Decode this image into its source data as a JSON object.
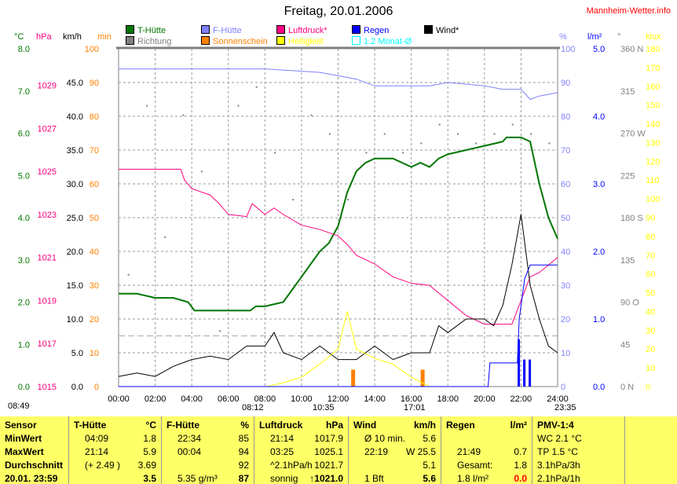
{
  "title": "Freitag, 20.01.2006",
  "site": "Mannheim-Wetter.info",
  "legend": [
    {
      "label": "T-Hütte",
      "color": "#007700"
    },
    {
      "label": "Richtung",
      "color": "#808080"
    },
    {
      "label": "F-Hütte",
      "color": "#8080ff"
    },
    {
      "label": "Sonnenschein",
      "color": "#ff8000"
    },
    {
      "label": "Luftdruck*",
      "color": "#ff0080"
    },
    {
      "label": "Helligkeit",
      "color": "#ffff00"
    },
    {
      "label": "Regen",
      "color": "#0000ff"
    },
    {
      "label": "1.2 Monat-Ø",
      "color": "#00ffff"
    },
    {
      "label": "Wind*",
      "color": "#000000"
    }
  ],
  "axis_units": {
    "c": "°C",
    "hpa": "hPa",
    "kmh": "km/h",
    "min": "min",
    "pct": "%",
    "lm2": "l/m²",
    "deg": "°",
    "klux": "klux"
  },
  "sun_events": {
    "sunrise_bright": "08:49",
    "sunrise": "08:12",
    "moon_set": "10:35",
    "sunset": "17:01",
    "moon_rise": "23:35"
  },
  "chart_data": {
    "type": "line",
    "title": "Freitag, 20.01.2006",
    "xlabel": "",
    "x_range": [
      0,
      24
    ],
    "x_ticks": [
      "00:00",
      "02:00",
      "04:00",
      "06:00",
      "08:00",
      "10:00",
      "12:00",
      "14:00",
      "16:00",
      "18:00",
      "20:00",
      "22:00",
      "24:00"
    ],
    "axes": {
      "c": {
        "range": [
          0,
          8
        ],
        "ticks": [
          "0.0",
          "1.0",
          "2.0",
          "3.0",
          "4.0",
          "5.0",
          "6.0",
          "7.0",
          "8.0"
        ]
      },
      "hpa": {
        "range": [
          1015,
          1030.7
        ],
        "ticks": [
          "1015",
          "1017",
          "1019",
          "1021",
          "1023",
          "1025",
          "1027",
          "1029"
        ]
      },
      "kmh": {
        "range": [
          0,
          50
        ],
        "ticks": [
          "0.0",
          "5.0",
          "10.0",
          "15.0",
          "20.0",
          "25.0",
          "30.0",
          "35.0",
          "40.0",
          "45.0"
        ]
      },
      "min": {
        "range": [
          0,
          100
        ],
        "ticks": [
          "0",
          "10",
          "20",
          "30",
          "40",
          "50",
          "60",
          "70",
          "80",
          "90",
          "100"
        ]
      },
      "pct": {
        "range": [
          0,
          100
        ],
        "ticks": [
          "0",
          "10",
          "20",
          "30",
          "40",
          "50",
          "60",
          "70",
          "80",
          "90",
          "100"
        ]
      },
      "lm2": {
        "range": [
          0,
          5
        ],
        "ticks": [
          "0.0",
          "1.0",
          "2.0",
          "3.0",
          "4.0",
          "5.0"
        ]
      },
      "deg": {
        "range": [
          0,
          360
        ],
        "ticks": [
          "0 N",
          "45",
          "90 O",
          "135",
          "180 S",
          "225",
          "270 W",
          "315",
          "360 N"
        ]
      },
      "klux": {
        "range": [
          0,
          180
        ],
        "ticks": [
          "0",
          "10",
          "20",
          "30",
          "40",
          "50",
          "60",
          "70",
          "80",
          "90",
          "100",
          "110",
          "120",
          "130",
          "140",
          "150",
          "160",
          "170",
          "180"
        ]
      }
    },
    "series": [
      {
        "name": "T-Hütte",
        "axis": "c",
        "color": "#007700",
        "x": [
          0,
          1,
          2,
          3,
          3.8,
          4.15,
          6,
          7.2,
          7.5,
          8,
          9,
          9.5,
          10,
          10.5,
          11,
          11.5,
          12,
          12.5,
          13,
          13.5,
          14,
          15,
          15.5,
          16,
          16.5,
          17,
          17.5,
          18,
          19,
          20,
          21,
          21.2,
          22,
          22.5,
          23,
          23.5,
          24
        ],
        "y": [
          2.2,
          2.2,
          2.1,
          2.1,
          2.0,
          1.8,
          1.8,
          1.8,
          1.9,
          1.9,
          2.0,
          2.3,
          2.6,
          2.9,
          3.2,
          3.4,
          3.8,
          4.6,
          5.1,
          5.3,
          5.4,
          5.4,
          5.3,
          5.2,
          5.3,
          5.2,
          5.4,
          5.5,
          5.6,
          5.7,
          5.8,
          5.9,
          5.9,
          5.8,
          4.8,
          4.0,
          3.5
        ]
      },
      {
        "name": "F-Hütte",
        "axis": "pct",
        "color": "#8080ff",
        "x": [
          0,
          6,
          8,
          11,
          12,
          13,
          14,
          17,
          18,
          20,
          21,
          22,
          22.5,
          23,
          24
        ],
        "y": [
          94,
          94,
          94,
          93,
          92,
          91,
          89,
          89,
          90,
          89,
          88,
          88,
          85,
          86,
          87
        ]
      },
      {
        "name": "Luftdruck*",
        "axis": "hpa",
        "color": "#ff0080",
        "x": [
          0,
          3.4,
          3.6,
          4,
          5,
          5.5,
          6,
          7,
          7.3,
          8,
          8.5,
          9,
          10,
          11,
          12,
          12.5,
          13,
          14,
          15,
          16,
          17,
          18,
          19,
          20,
          21.5,
          22,
          22.5,
          23,
          24
        ],
        "y": [
          1025.1,
          1025.1,
          1024.6,
          1024.2,
          1023.9,
          1023.5,
          1023.0,
          1022.9,
          1023.5,
          1023.0,
          1023.3,
          1023.0,
          1022.5,
          1022.3,
          1022.0,
          1021.6,
          1021.1,
          1020.7,
          1020.1,
          1019.8,
          1019.7,
          1019.0,
          1018.3,
          1017.9,
          1017.9,
          1019.0,
          1020.1,
          1020.3,
          1021.0
        ]
      },
      {
        "name": "Wind*",
        "axis": "kmh",
        "color": "#000000",
        "x": [
          0,
          1,
          2,
          3,
          4,
          5,
          6,
          7,
          8,
          8.5,
          9,
          10,
          11,
          12,
          13,
          14,
          15,
          16,
          17,
          17.5,
          18,
          19,
          20,
          20.5,
          21,
          21.5,
          22,
          22.5,
          23,
          23.5,
          24
        ],
        "y": [
          1.5,
          2,
          1.5,
          3,
          4,
          4.5,
          4,
          6,
          6,
          8,
          5,
          4,
          6,
          4,
          4,
          6,
          4,
          5,
          5,
          9,
          8,
          10,
          10,
          9,
          12,
          18,
          25.5,
          15,
          10,
          6,
          5
        ]
      },
      {
        "name": "Helligkeit",
        "axis": "klux",
        "color": "#ffff00",
        "x": [
          8.1,
          9,
          10,
          11,
          12,
          12.5,
          13,
          14,
          15,
          16,
          17
        ],
        "y": [
          0,
          2,
          5,
          12,
          20,
          40,
          20,
          15,
          12,
          5,
          0
        ]
      },
      {
        "name": "Regen",
        "axis": "lm2",
        "color": "#0000ff",
        "x": [
          0,
          20.2,
          20.3,
          21.8,
          21.9,
          22.2,
          22.5,
          24
        ],
        "y": [
          0,
          0,
          0.35,
          0.35,
          1.0,
          1.6,
          1.8,
          1.8
        ]
      },
      {
        "name": "Richtung",
        "axis": "deg",
        "color": "#808080",
        "type": "scatter",
        "x": [
          0.5,
          1.5,
          2.5,
          3.5,
          4.5,
          5.5,
          6.5,
          7.5,
          8.5,
          9.5,
          10.5,
          11.5,
          12.5,
          13.5,
          14.5,
          15.5,
          16.5,
          17.5,
          18.5,
          19.5,
          20.5,
          21.5,
          22.5,
          23.5
        ],
        "y": [
          120,
          300,
          160,
          290,
          230,
          60,
          300,
          320,
          250,
          200,
          290,
          270,
          200,
          250,
          270,
          250,
          260,
          280,
          270,
          260,
          270,
          280,
          270,
          260
        ]
      }
    ],
    "bars": [
      {
        "name": "Sonnenschein",
        "axis": "min",
        "color": "#ff8000",
        "x": [
          12.8,
          16.6
        ],
        "y": [
          5,
          5
        ]
      },
      {
        "name": "Regen",
        "axis": "lm2",
        "color": "#0000ff",
        "x": [
          21.9,
          22.2,
          22.5
        ],
        "y": [
          0.7,
          0.4,
          0.4
        ]
      }
    ]
  },
  "table": {
    "columns": [
      {
        "head": "Sensor",
        "unit": "",
        "rows": [
          [
            "MinWert",
            "",
            ""
          ],
          [
            "MaxWert",
            "",
            ""
          ],
          [
            "Durchschnitt",
            "",
            ""
          ],
          [
            "20.01. 23:59",
            "",
            ""
          ]
        ]
      },
      {
        "head": "T-Hütte",
        "unit": "°C",
        "rows": [
          [
            "04:09",
            "1.8"
          ],
          [
            "21:14",
            "5.9"
          ],
          [
            "(+ 2.49 )",
            "3.69"
          ],
          [
            "",
            "3.5"
          ]
        ]
      },
      {
        "head": "F-Hütte",
        "unit": "%",
        "rows": [
          [
            "22:34",
            "85"
          ],
          [
            "00:04",
            "94"
          ],
          [
            "",
            "92"
          ],
          [
            "5.35 g/m³",
            "87"
          ]
        ]
      },
      {
        "head": "Luftdruck",
        "unit": "hPa",
        "rows": [
          [
            "21:14",
            "1017.9"
          ],
          [
            "03:25",
            "1025.1"
          ],
          [
            "^2.1hPa/h",
            "1021.7"
          ],
          [
            "sonnig",
            "↑1021.0"
          ]
        ]
      },
      {
        "head": "Wind",
        "unit": "km/h",
        "rows": [
          [
            "Ø 10 min.",
            "5.6"
          ],
          [
            "22:19",
            "W 25.5"
          ],
          [
            "",
            "5.1"
          ],
          [
            "1 Bft",
            "5.6"
          ]
        ]
      },
      {
        "head": "Regen",
        "unit": "l/m²",
        "rows": [
          [
            "",
            ""
          ],
          [
            "21:49",
            "0.7"
          ],
          [
            "Gesamt:",
            "1.8"
          ],
          [
            "1.8 l/m²",
            "0.0"
          ]
        ]
      },
      {
        "head": "PMV-1:4",
        "unit": "",
        "rows": [
          [
            "WC 2.1 °C",
            ""
          ],
          [
            "TP 1.5 °C",
            ""
          ],
          [
            "3.1hPa/3h",
            ""
          ],
          [
            "2.1hPa/1h",
            ""
          ]
        ]
      }
    ]
  }
}
